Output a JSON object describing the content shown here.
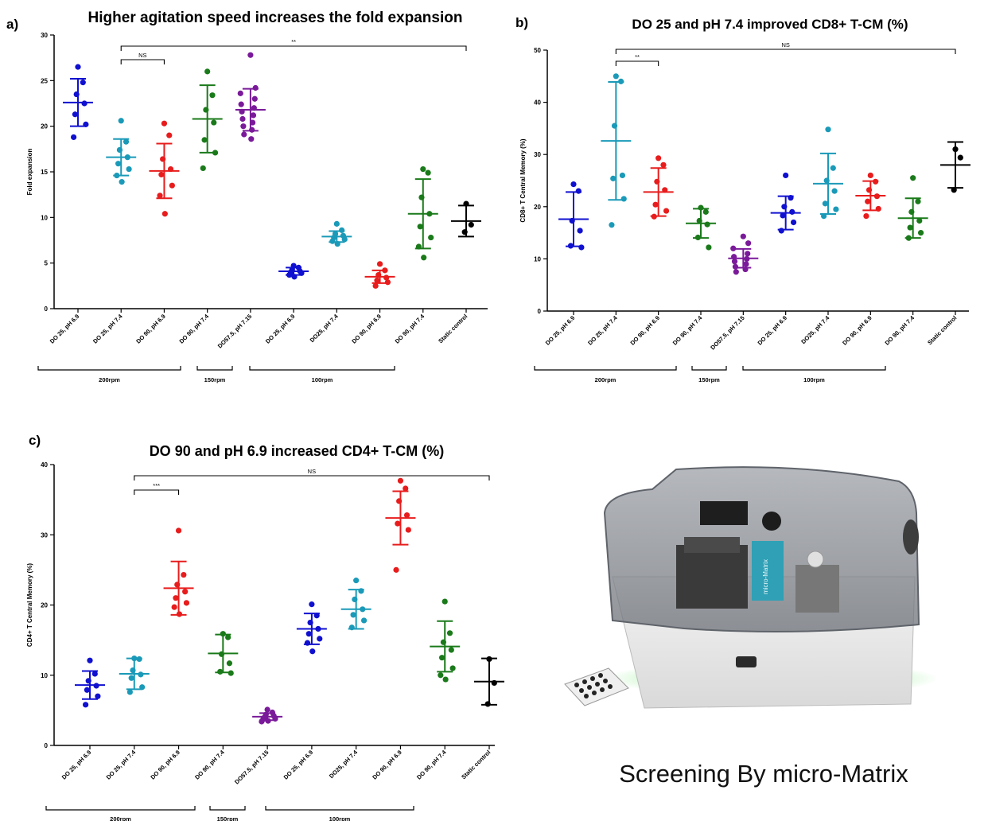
{
  "panels": [
    {
      "label": "a)",
      "title": "Higher agitation speed increases the fold expansion",
      "ylabel": "Fold expansion",
      "ylim": [
        0,
        30
      ],
      "yticks": [
        0,
        5,
        10,
        15,
        20,
        25,
        30
      ],
      "categories": [
        "DO 25, pH 6.9",
        "DO 25, pH 7.4",
        "DO 90, pH 6.9",
        "DO 90, pH 7.4",
        "DO57.5, pH 7.15",
        "DO 25, pH 6.9",
        "DO25, pH 7.4",
        "DO 90, pH 6.9",
        "DO 90, pH 7.4",
        "Static control"
      ],
      "groups": [
        {
          "label": "200rpm",
          "from": 0,
          "to": 3
        },
        {
          "label": "150rpm",
          "from": 4,
          "to": 4
        },
        {
          "label": "100rpm",
          "from": 5,
          "to": 7
        }
      ],
      "brackets": [
        {
          "from": 1,
          "to": 9,
          "label": "**"
        },
        {
          "from": 1,
          "to": 2,
          "label": "NS"
        }
      ]
    },
    {
      "label": "b)",
      "title": "DO 25 and pH 7.4 improved CD8+ T-CM (%)",
      "ylabel": "CD8+ T Central Memory (%)",
      "ylim": [
        0,
        50
      ],
      "yticks": [
        0,
        10,
        20,
        30,
        40,
        50
      ],
      "categories": [
        "DO 25, pH 6.9",
        "DO 25, pH 7.4",
        "DO 90, pH 6.9",
        "DO 90, pH 7.4",
        "DO57.5, pH 7.15",
        "DO 25, pH 6.9",
        "DO25, pH 7.4",
        "DO 90, pH 6.9",
        "DO 90, pH 7.4",
        "Static control"
      ],
      "groups": [
        {
          "label": "200rpm",
          "from": 0,
          "to": 3
        },
        {
          "label": "150rpm",
          "from": 4,
          "to": 4
        },
        {
          "label": "100rpm",
          "from": 5,
          "to": 8
        }
      ],
      "brackets": [
        {
          "from": 1,
          "to": 9,
          "label": "NS"
        },
        {
          "from": 1,
          "to": 2,
          "label": "**"
        }
      ]
    },
    {
      "label": "c)",
      "title": "DO 90 and pH 6.9 increased CD4+ T-CM (%)",
      "ylabel": "CD4+ T Central Memory (%)",
      "ylim": [
        0,
        40
      ],
      "yticks": [
        0,
        10,
        20,
        30,
        40
      ],
      "categories": [
        "DO 25, pH 6.9",
        "DO 25, pH 7.4",
        "DO 90, pH 6.9",
        "DO 90, pH 7.4",
        "DO57.5, pH 7.15",
        "DO 25, pH 6.9",
        "DO25, pH 7.4",
        "DO 90, pH 6.9",
        "DO 90, pH 7.4",
        "Static control"
      ],
      "groups": [
        {
          "label": "200rpm",
          "from": 0,
          "to": 3
        },
        {
          "label": "150rpm",
          "from": 4,
          "to": 4
        },
        {
          "label": "100rpm",
          "from": 5,
          "to": 8
        }
      ],
      "brackets": [
        {
          "from": 1,
          "to": 9,
          "label": "NS"
        },
        {
          "from": 1,
          "to": 2,
          "label": "***"
        }
      ]
    }
  ],
  "chart_data": [
    {
      "type": "scatter",
      "title": "Higher agitation speed increases the fold expansion",
      "ylabel": "Fold expansion",
      "ylim": [
        0,
        30
      ],
      "categories": [
        "DO 25, pH 6.9",
        "DO 25, pH 7.4",
        "DO 90, pH 6.9",
        "DO 90, pH 7.4",
        "DO57.5, pH 7.15",
        "DO 25, pH 6.9",
        "DO25, pH 7.4",
        "DO 90, pH 6.9",
        "DO 90, pH 7.4",
        "Static control"
      ],
      "colors": [
        "#1010d0",
        "#1a9ab8",
        "#e81c1c",
        "#1a7a1a",
        "#7a1a9a",
        "#1010d0",
        "#1a9ab8",
        "#e81c1c",
        "#1a7a1a",
        "#000000"
      ],
      "points": [
        [
          26.5,
          24.8,
          23.5,
          22.5,
          21.3,
          20.2,
          18.8
        ],
        [
          20.6,
          18.3,
          17.4,
          16.6,
          15.9,
          15.3,
          14.6,
          13.9
        ],
        [
          20.3,
          19.0,
          16.4,
          15.3,
          14.7,
          13.5,
          12.4,
          10.4
        ],
        [
          26.0,
          23.4,
          21.8,
          20.4,
          18.5,
          17.1,
          15.4
        ],
        [
          27.8,
          24.2,
          23.6,
          23.0,
          22.4,
          22.0,
          21.6,
          21.2,
          20.8,
          20.4,
          20.0,
          19.6,
          19.1,
          18.6
        ],
        [
          4.7,
          4.5,
          4.3,
          4.1,
          4.0,
          3.9,
          3.7,
          3.5
        ],
        [
          9.3,
          8.6,
          8.2,
          8.0,
          7.8,
          7.6,
          7.4,
          7.1
        ],
        [
          4.9,
          4.2,
          3.7,
          3.4,
          3.1,
          2.9,
          2.5
        ],
        [
          15.3,
          14.9,
          12.2,
          10.4,
          9.0,
          7.8,
          6.8,
          5.6
        ],
        [
          11.5,
          9.2,
          8.4
        ]
      ],
      "means": [
        22.6,
        16.6,
        15.1,
        20.8,
        21.8,
        4.1,
        7.9,
        3.5,
        10.4,
        9.6
      ],
      "sd": [
        2.6,
        2.0,
        3.0,
        3.7,
        2.3,
        0.4,
        0.6,
        0.7,
        3.8,
        1.7
      ]
    },
    {
      "type": "scatter",
      "title": "DO 25 and pH 7.4 improved CD8+ T-CM (%)",
      "ylabel": "CD8+ T Central Memory (%)",
      "ylim": [
        0,
        50
      ],
      "categories": [
        "DO 25, pH 6.9",
        "DO 25, pH 7.4",
        "DO 90, pH 6.9",
        "DO 90, pH 7.4",
        "DO57.5, pH 7.15",
        "DO 25, pH 6.9",
        "DO25, pH 7.4",
        "DO 90, pH 6.9",
        "DO 90, pH 7.4",
        "Static control"
      ],
      "colors": [
        "#1010d0",
        "#1a9ab8",
        "#e81c1c",
        "#1a7a1a",
        "#7a1a9a",
        "#1010d0",
        "#1a9ab8",
        "#e81c1c",
        "#1a7a1a",
        "#000000"
      ],
      "points": [
        [
          24.3,
          23.0,
          17.3,
          15.4,
          12.5,
          12.2
        ],
        [
          45.0,
          44.0,
          35.5,
          26.0,
          25.4,
          21.5,
          16.5
        ],
        [
          29.3,
          28.0,
          24.8,
          23.2,
          20.4,
          19.2,
          18.1
        ],
        [
          19.8,
          19.0,
          17.3,
          16.6,
          14.1,
          12.2
        ],
        [
          14.3,
          13.0,
          12.0,
          11.0,
          10.4,
          10.0,
          9.5,
          9.0,
          8.5,
          8.0,
          7.5
        ],
        [
          26.0,
          21.7,
          20.0,
          19.0,
          18.3,
          17.0,
          15.4
        ],
        [
          34.8,
          27.4,
          25.0,
          23.0,
          20.6,
          19.5,
          18.2
        ],
        [
          26.0,
          24.8,
          23.2,
          22.0,
          21.0,
          19.6,
          18.2
        ],
        [
          25.5,
          21.0,
          19.0,
          17.3,
          16.0,
          15.0,
          14.0
        ],
        [
          31.0,
          29.4,
          23.2
        ]
      ],
      "means": [
        17.6,
        32.6,
        22.8,
        16.8,
        10.1,
        18.8,
        24.4,
        22.1,
        17.8,
        28.0
      ],
      "sd": [
        5.2,
        11.3,
        4.6,
        2.8,
        1.8,
        3.2,
        5.8,
        2.8,
        3.8,
        4.4
      ]
    },
    {
      "type": "scatter",
      "title": "DO 90 and pH 6.9 increased CD4+ T-CM (%)",
      "ylabel": "CD4+ T Central Memory (%)",
      "ylim": [
        0,
        40
      ],
      "categories": [
        "DO 25, pH 6.9",
        "DO 25, pH 7.4",
        "DO 90, pH 6.9",
        "DO 90, pH 7.4",
        "DO57.5, pH 7.15",
        "DO 25, pH 6.9",
        "DO25, pH 7.4",
        "DO 90, pH 6.9",
        "DO 90, pH 7.4",
        "Static control"
      ],
      "colors": [
        "#1010d0",
        "#1a9ab8",
        "#e81c1c",
        "#1a7a1a",
        "#7a1a9a",
        "#1010d0",
        "#1a9ab8",
        "#e81c1c",
        "#1a7a1a",
        "#000000"
      ],
      "points": [
        [
          12.1,
          10.2,
          9.2,
          8.5,
          7.9,
          7.0,
          5.8
        ],
        [
          12.4,
          12.3,
          10.7,
          10.1,
          9.6,
          8.3,
          7.6
        ],
        [
          30.6,
          24.3,
          22.9,
          21.9,
          21.0,
          20.3,
          19.7,
          18.7
        ],
        [
          15.9,
          15.4,
          13.0,
          11.7,
          10.5,
          10.3
        ],
        [
          5.1,
          4.7,
          4.4,
          4.2,
          4.0,
          3.8,
          3.7,
          3.5,
          3.4
        ],
        [
          20.1,
          18.5,
          17.5,
          16.6,
          15.9,
          15.2,
          14.6,
          13.4
        ],
        [
          23.5,
          22.0,
          20.8,
          19.4,
          18.6,
          17.8,
          16.8
        ],
        [
          37.7,
          36.6,
          34.8,
          32.8,
          31.6,
          30.7,
          25.0
        ],
        [
          20.5,
          16.0,
          14.7,
          13.6,
          12.5,
          11.0,
          10.0,
          9.4
        ],
        [
          12.3,
          8.9,
          5.9
        ]
      ],
      "means": [
        8.6,
        10.2,
        22.4,
        13.1,
        4.1,
        16.6,
        19.4,
        32.4,
        14.1,
        9.1
      ],
      "sd": [
        2.0,
        2.2,
        3.8,
        2.7,
        0.5,
        2.2,
        2.8,
        3.8,
        3.6,
        3.3
      ]
    }
  ],
  "device_image": {
    "caption": "Screening By micro-Matrix",
    "label_text": "micro-Matrix"
  }
}
